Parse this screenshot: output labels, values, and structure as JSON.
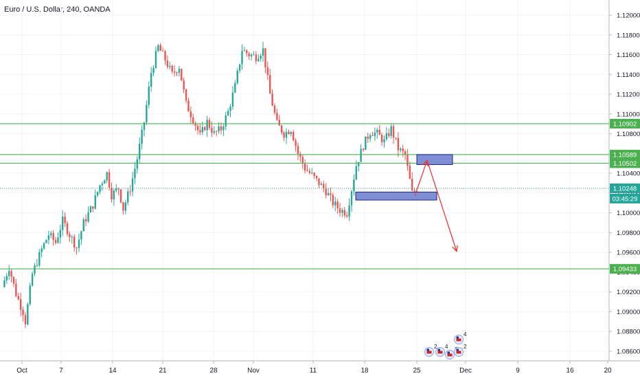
{
  "header": {
    "title": "Euro / U.S. Dollar, 240, OANDA"
  },
  "colors": {
    "up": "#26a69a",
    "down": "#ef5350",
    "level": "#4caf50",
    "current": "#26a69a",
    "zone_fill": "#7f8fd6",
    "zone_stroke": "#1a237e",
    "arrow": "#e53935",
    "axis_text": "#131722",
    "grid": "#f0f3fa"
  },
  "chart_data": {
    "type": "candlestick",
    "title": "Euro / U.S. Dollar, 240, OANDA",
    "ylim": [
      1.0846,
      1.1225
    ],
    "y_ticks": [
      "1.12000",
      "1.11800",
      "1.11600",
      "1.11400",
      "1.11200",
      "1.11000",
      "1.10800",
      "1.10600",
      "1.10400",
      "1.10200",
      "1.10000",
      "1.09800",
      "1.09600",
      "1.09400",
      "1.09200",
      "1.09000",
      "1.08800",
      "1.08600"
    ],
    "x_ticks": [
      "Oct",
      "7",
      "14",
      "21",
      "28",
      "Nov",
      "11",
      "18",
      "25",
      "Dec",
      "9",
      "16",
      "20"
    ],
    "horizontal_levels": [
      {
        "value": 1.10902,
        "label": "1.10902"
      },
      {
        "value": 1.10589,
        "label": "1.10589"
      },
      {
        "value": 1.10502,
        "label": "1.10502"
      },
      {
        "value": 1.09433,
        "label": "1.09433"
      }
    ],
    "current_price": {
      "value": 1.10248,
      "label": "1.10248",
      "countdown": "03:45:29"
    },
    "price_path": [
      [
        0,
        1.0925
      ],
      [
        3,
        1.0945
      ],
      [
        6,
        1.0918
      ],
      [
        9,
        1.09
      ],
      [
        10,
        1.089
      ],
      [
        13,
        1.0938
      ],
      [
        17,
        1.0963
      ],
      [
        20,
        1.0978
      ],
      [
        23,
        1.097
      ],
      [
        26,
        1.0992
      ],
      [
        29,
        1.0978
      ],
      [
        32,
        1.0965
      ],
      [
        35,
        1.099
      ],
      [
        39,
        1.1008
      ],
      [
        42,
        1.1028
      ],
      [
        45,
        1.104
      ],
      [
        47,
        1.1018
      ],
      [
        50,
        1.1025
      ],
      [
        52,
        1.1004
      ],
      [
        55,
        1.1025
      ],
      [
        58,
        1.1055
      ],
      [
        61,
        1.1092
      ],
      [
        64,
        1.1142
      ],
      [
        67,
        1.1168
      ],
      [
        70,
        1.1155
      ],
      [
        73,
        1.114
      ],
      [
        76,
        1.1148
      ],
      [
        79,
        1.111
      ],
      [
        82,
        1.1095
      ],
      [
        85,
        1.1078
      ],
      [
        88,
        1.1092
      ],
      [
        91,
        1.108
      ],
      [
        94,
        1.1085
      ],
      [
        97,
        1.1102
      ],
      [
        100,
        1.1128
      ],
      [
        103,
        1.1165
      ],
      [
        106,
        1.116
      ],
      [
        109,
        1.1158
      ],
      [
        112,
        1.1165
      ],
      [
        115,
        1.112
      ],
      [
        118,
        1.109
      ],
      [
        121,
        1.108
      ],
      [
        124,
        1.1085
      ],
      [
        127,
        1.106
      ],
      [
        130,
        1.1045
      ],
      [
        133,
        1.1038
      ],
      [
        136,
        1.103
      ],
      [
        139,
        1.1022
      ],
      [
        142,
        1.101
      ],
      [
        145,
        1.1003
      ],
      [
        148,
        1.1
      ],
      [
        149,
        1.1012
      ],
      [
        152,
        1.1048
      ],
      [
        155,
        1.1068
      ],
      [
        158,
        1.1082
      ],
      [
        161,
        1.108
      ],
      [
        164,
        1.1072
      ],
      [
        167,
        1.1085
      ],
      [
        170,
        1.1065
      ],
      [
        173,
        1.1058
      ],
      [
        176,
        1.102
      ],
      [
        178,
        1.1024
      ]
    ],
    "annotations": [
      {
        "type": "zone",
        "price_top": 1.10589,
        "price_bottom": 1.10502,
        "x_start": "Nov 25",
        "x_end": "Nov 28"
      },
      {
        "type": "zone",
        "price_top": 1.1021,
        "price_bottom": 1.1015,
        "x_start": "Nov 18",
        "x_end": "Nov 28"
      },
      {
        "type": "arrow",
        "from": [
          1.1017,
          "Nov 25"
        ],
        "to": [
          1.1053,
          "Nov 26"
        ]
      },
      {
        "type": "arrow",
        "from": [
          1.1053,
          "Nov 26"
        ],
        "to": [
          1.0961,
          "Nov 29"
        ]
      }
    ],
    "event_markers": [
      "2",
      "4",
      "2",
      "2",
      "4"
    ]
  }
}
